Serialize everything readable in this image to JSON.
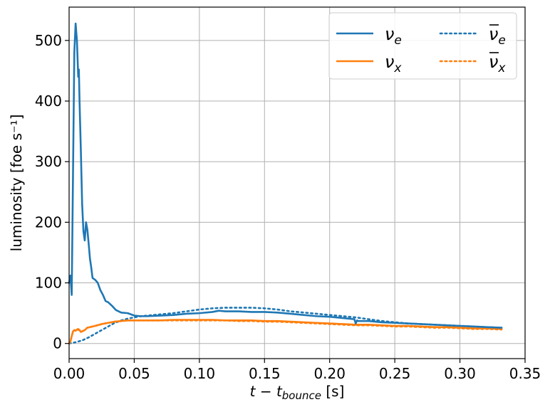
{
  "chart_data": {
    "type": "line",
    "xlabel": "t − t_bounce [s]",
    "xlabel_main": "t − t",
    "xlabel_sub": "bounce",
    "xlabel_unit": " [s]",
    "ylabel": "luminosity [foe s⁻¹]",
    "xlim": [
      0,
      0.35
    ],
    "ylim": [
      -25,
      555
    ],
    "xticks": [
      "0.00",
      "0.05",
      "0.10",
      "0.15",
      "0.20",
      "0.25",
      "0.30",
      "0.35"
    ],
    "yticks": [
      "0",
      "100",
      "200",
      "300",
      "400",
      "500"
    ],
    "grid": true,
    "legend_placement": "top-right",
    "legend_columns": 2,
    "series": [
      {
        "name": "ν_e",
        "color": "#1f77b4",
        "style": "solid",
        "x": [
          0.0,
          0.001,
          0.002,
          0.003,
          0.004,
          0.005,
          0.006,
          0.007,
          0.0075,
          0.008,
          0.009,
          0.01,
          0.011,
          0.012,
          0.013,
          0.014,
          0.015,
          0.016,
          0.017,
          0.018,
          0.02,
          0.022,
          0.024,
          0.026,
          0.028,
          0.03,
          0.033,
          0.036,
          0.04,
          0.045,
          0.05,
          0.055,
          0.06,
          0.07,
          0.08,
          0.09,
          0.1,
          0.11,
          0.115,
          0.12,
          0.13,
          0.14,
          0.15,
          0.16,
          0.17,
          0.18,
          0.19,
          0.2,
          0.21,
          0.219,
          0.22,
          0.221,
          0.222,
          0.225,
          0.23,
          0.24,
          0.25,
          0.26,
          0.27,
          0.28,
          0.29,
          0.3,
          0.31,
          0.32,
          0.332
        ],
        "y": [
          100,
          112,
          80,
          280,
          480,
          528,
          500,
          440,
          452,
          400,
          320,
          230,
          185,
          170,
          200,
          188,
          165,
          140,
          125,
          108,
          105,
          100,
          88,
          80,
          70,
          68,
          62,
          55,
          51,
          50,
          46,
          45,
          45,
          46,
          47,
          49,
          50,
          52,
          54,
          53,
          53,
          52,
          52,
          51,
          49,
          47,
          45,
          44,
          42,
          40,
          33,
          38,
          37,
          37,
          37,
          35,
          34,
          33,
          32,
          31,
          30,
          29,
          28,
          27,
          26
        ]
      },
      {
        "name": "ν_x",
        "color": "#ff7f0e",
        "style": "solid",
        "x": [
          0.0,
          0.001,
          0.002,
          0.003,
          0.004,
          0.005,
          0.006,
          0.007,
          0.008,
          0.009,
          0.01,
          0.012,
          0.014,
          0.016,
          0.018,
          0.02,
          0.025,
          0.03,
          0.035,
          0.04,
          0.045,
          0.05,
          0.06,
          0.07,
          0.08,
          0.09,
          0.1,
          0.11,
          0.12,
          0.13,
          0.14,
          0.15,
          0.16,
          0.17,
          0.18,
          0.19,
          0.2,
          0.21,
          0.22,
          0.23,
          0.24,
          0.25,
          0.26,
          0.27,
          0.28,
          0.29,
          0.3,
          0.31,
          0.32,
          0.332
        ],
        "y": [
          0,
          3,
          12,
          20,
          22,
          21,
          23,
          24,
          22,
          19,
          20,
          22,
          26,
          27,
          28,
          29,
          32,
          34,
          36,
          37,
          38,
          38,
          38,
          38,
          39,
          39,
          39,
          39,
          38,
          38,
          38,
          37,
          37,
          36,
          35,
          34,
          33,
          32,
          31,
          31,
          30,
          29,
          29,
          28,
          27,
          27,
          26,
          25,
          25,
          24
        ]
      },
      {
        "name": "ν̄_e",
        "color": "#1f77b4",
        "style": "dotted",
        "x": [
          0.0,
          0.005,
          0.01,
          0.015,
          0.02,
          0.025,
          0.03,
          0.035,
          0.04,
          0.045,
          0.05,
          0.055,
          0.06,
          0.07,
          0.08,
          0.09,
          0.1,
          0.11,
          0.12,
          0.13,
          0.14,
          0.15,
          0.16,
          0.17,
          0.18,
          0.19,
          0.2,
          0.21,
          0.22,
          0.23,
          0.24,
          0.25,
          0.26,
          0.27,
          0.28,
          0.29,
          0.3,
          0.31,
          0.32,
          0.332
        ],
        "y": [
          0,
          2,
          5,
          10,
          16,
          22,
          28,
          34,
          38,
          41,
          43,
          45,
          46,
          48,
          50,
          53,
          56,
          58,
          59,
          59,
          59,
          58,
          56,
          53,
          51,
          49,
          47,
          45,
          43,
          40,
          37,
          35,
          33,
          32,
          31,
          30,
          29,
          28,
          27,
          26
        ]
      },
      {
        "name": "ν̄_x",
        "color": "#ff7f0e",
        "style": "dotted",
        "x": [
          0.0,
          0.001,
          0.002,
          0.003,
          0.004,
          0.005,
          0.006,
          0.008,
          0.01,
          0.012,
          0.014,
          0.016,
          0.018,
          0.02,
          0.025,
          0.03,
          0.035,
          0.04,
          0.045,
          0.05,
          0.06,
          0.07,
          0.08,
          0.09,
          0.1,
          0.11,
          0.12,
          0.13,
          0.14,
          0.15,
          0.16,
          0.17,
          0.18,
          0.19,
          0.2,
          0.21,
          0.22,
          0.23,
          0.24,
          0.25,
          0.26,
          0.27,
          0.28,
          0.29,
          0.3,
          0.31,
          0.32,
          0.332
        ],
        "y": [
          0,
          3,
          12,
          20,
          22,
          21,
          23,
          22,
          20,
          22,
          26,
          27,
          28,
          29,
          32,
          34,
          36,
          37,
          38,
          38,
          38,
          38,
          38,
          38,
          38,
          38,
          38,
          37,
          37,
          36,
          36,
          35,
          34,
          33,
          32,
          31,
          30,
          30,
          29,
          28,
          28,
          27,
          26,
          26,
          25,
          24,
          24,
          23
        ]
      }
    ]
  }
}
